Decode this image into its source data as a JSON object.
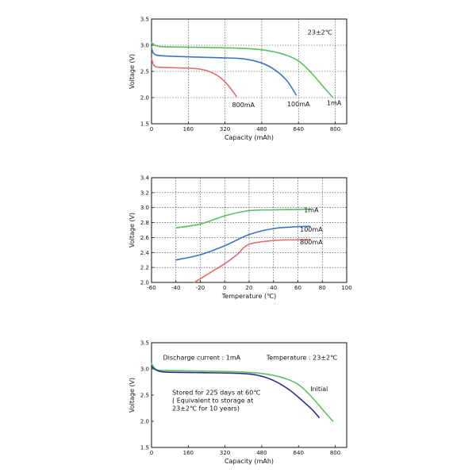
{
  "chart_data": [
    {
      "type": "line",
      "title": "",
      "xlabel": "Capacity (mAh)",
      "ylabel": "Voltage (V)",
      "xlim": [
        0,
        850
      ],
      "ylim": [
        1.5,
        3.5
      ],
      "xticks": [
        "0",
        "160",
        "320",
        "480",
        "640",
        "800"
      ],
      "xtick_values": [
        0,
        160,
        320,
        480,
        640,
        800
      ],
      "yticks": [
        "1.5",
        "2.0",
        "2.5",
        "3.0",
        "3.5"
      ],
      "ytick_values": [
        1.5,
        2.0,
        2.5,
        3.0,
        3.5
      ],
      "grid": true,
      "annotations": [
        {
          "text": "23±2℃",
          "x": 680,
          "y": 3.25
        }
      ],
      "series": [
        {
          "name": "1mA",
          "color": "#5cc060",
          "label_text": "1mA",
          "label_at": [
            795,
            1.9
          ],
          "points": [
            [
              0,
              3.05
            ],
            [
              20,
              2.99
            ],
            [
              60,
              2.97
            ],
            [
              200,
              2.96
            ],
            [
              400,
              2.94
            ],
            [
              500,
              2.9
            ],
            [
              580,
              2.82
            ],
            [
              640,
              2.7
            ],
            [
              690,
              2.5
            ],
            [
              740,
              2.25
            ],
            [
              790,
              2.0
            ]
          ]
        },
        {
          "name": "100mA",
          "color": "#3c74c0",
          "label_text": "100mA",
          "label_at": [
            640,
            1.88
          ],
          "points": [
            [
              0,
              2.95
            ],
            [
              10,
              2.84
            ],
            [
              40,
              2.8
            ],
            [
              150,
              2.78
            ],
            [
              300,
              2.76
            ],
            [
              400,
              2.74
            ],
            [
              480,
              2.66
            ],
            [
              540,
              2.52
            ],
            [
              590,
              2.32
            ],
            [
              630,
              2.05
            ]
          ]
        },
        {
          "name": "800mA",
          "color": "#e36c6c",
          "label_text": "800mA",
          "label_at": [
            400,
            1.86
          ],
          "points": [
            [
              0,
              2.75
            ],
            [
              10,
              2.62
            ],
            [
              30,
              2.58
            ],
            [
              100,
              2.57
            ],
            [
              200,
              2.55
            ],
            [
              250,
              2.5
            ],
            [
              300,
              2.38
            ],
            [
              340,
              2.2
            ],
            [
              370,
              2.02
            ]
          ]
        }
      ]
    },
    {
      "type": "line",
      "title": "",
      "xlabel": "Temperature (℃)",
      "ylabel": "Voltage (V)",
      "xlim": [
        -60,
        100
      ],
      "ylim": [
        2.0,
        3.4
      ],
      "xticks": [
        "-60",
        "-40",
        "-20",
        "0",
        "20",
        "40",
        "60",
        "80",
        "100"
      ],
      "xtick_values": [
        -60,
        -40,
        -20,
        0,
        20,
        40,
        60,
        80,
        100
      ],
      "yticks": [
        "2.0",
        "2.2",
        "2.4",
        "2.6",
        "2.8",
        "3.0",
        "3.2",
        "3.4"
      ],
      "ytick_values": [
        2.0,
        2.2,
        2.4,
        2.6,
        2.8,
        3.0,
        3.2,
        3.4
      ],
      "grid": true,
      "annotations": [],
      "series": [
        {
          "name": "1mA",
          "color": "#5cc060",
          "label_text": "1mA",
          "label_at": [
            71,
            2.97
          ],
          "points": [
            [
              -40,
              2.73
            ],
            [
              -20,
              2.78
            ],
            [
              0,
              2.89
            ],
            [
              20,
              2.96
            ],
            [
              40,
              2.97
            ],
            [
              60,
              2.975
            ],
            [
              70,
              2.98
            ]
          ]
        },
        {
          "name": "100mA",
          "color": "#3c74c0",
          "label_text": "100mA",
          "label_at": [
            71,
            2.71
          ],
          "points": [
            [
              -40,
              2.3
            ],
            [
              -20,
              2.37
            ],
            [
              0,
              2.49
            ],
            [
              20,
              2.64
            ],
            [
              40,
              2.72
            ],
            [
              60,
              2.745
            ],
            [
              70,
              2.75
            ]
          ]
        },
        {
          "name": "800mA",
          "color": "#e36c6c",
          "label_text": "800mA",
          "label_at": [
            71,
            2.54
          ],
          "points": [
            [
              -25,
              2.0
            ],
            [
              -10,
              2.15
            ],
            [
              0,
              2.25
            ],
            [
              10,
              2.37
            ],
            [
              20,
              2.51
            ],
            [
              40,
              2.56
            ],
            [
              60,
              2.57
            ],
            [
              70,
              2.575
            ]
          ]
        }
      ]
    },
    {
      "type": "line",
      "title": "",
      "xlabel": "Capacity (mAh)",
      "ylabel": "Voltage (V)",
      "xlim": [
        0,
        850
      ],
      "ylim": [
        1.5,
        3.5
      ],
      "xticks": [
        "0",
        "160",
        "320",
        "480",
        "640",
        "800"
      ],
      "xtick_values": [
        0,
        160,
        320,
        480,
        640,
        800
      ],
      "yticks": [
        "1.5",
        "2.0",
        "2.5",
        "3.0",
        "3.5"
      ],
      "ytick_values": [
        1.5,
        2.0,
        2.5,
        3.0,
        3.5
      ],
      "grid": false,
      "annotations": [
        {
          "text": "Discharge current : 1mA",
          "x": 50,
          "y": 3.22
        },
        {
          "text": "Temperature : 23±2℃",
          "x": 500,
          "y": 3.22
        },
        {
          "text": "Stored for 225 days at 60℃",
          "x": 90,
          "y": 2.55
        },
        {
          "text": "( Equivalent to storage at",
          "x": 90,
          "y": 2.4
        },
        {
          "text": "23±2℃ for 10 years)",
          "x": 90,
          "y": 2.25
        }
      ],
      "series": [
        {
          "name": "Initial",
          "color": "#5cc060",
          "label_text": "Initial",
          "label_at": [
            730,
            2.62
          ],
          "points": [
            [
              0,
              3.1
            ],
            [
              20,
              2.99
            ],
            [
              60,
              2.97
            ],
            [
              200,
              2.96
            ],
            [
              400,
              2.94
            ],
            [
              500,
              2.9
            ],
            [
              580,
              2.82
            ],
            [
              640,
              2.7
            ],
            [
              690,
              2.5
            ],
            [
              740,
              2.25
            ],
            [
              790,
              2.0
            ]
          ]
        },
        {
          "name": "Stored",
          "color": "#2a2c8c",
          "label_text": "",
          "label_at": null,
          "points": [
            [
              0,
              3.05
            ],
            [
              20,
              2.98
            ],
            [
              60,
              2.94
            ],
            [
              200,
              2.93
            ],
            [
              400,
              2.91
            ],
            [
              480,
              2.86
            ],
            [
              540,
              2.76
            ],
            [
              600,
              2.6
            ],
            [
              650,
              2.42
            ],
            [
              700,
              2.22
            ],
            [
              730,
              2.07
            ]
          ]
        }
      ]
    }
  ]
}
